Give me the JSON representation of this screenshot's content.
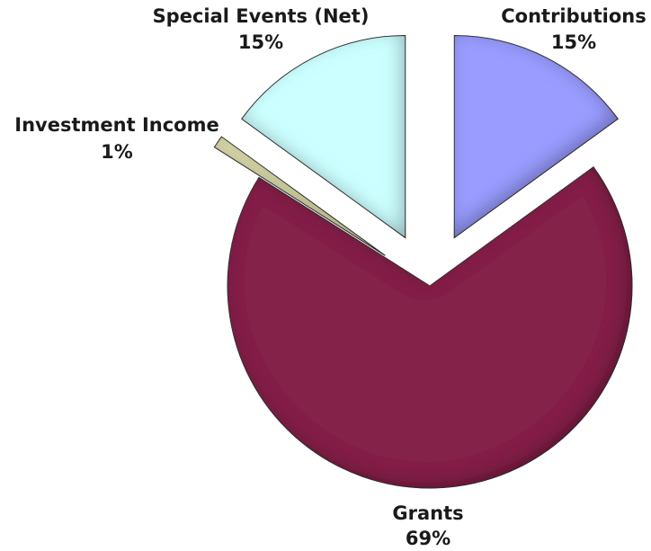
{
  "chart_data": {
    "type": "pie",
    "title": "",
    "start_angle_deg": 0,
    "direction": "clockwise",
    "slices": [
      {
        "label": "Contributions",
        "value": 15,
        "value_label": "15%",
        "color": "#9a9cff",
        "exploded": true
      },
      {
        "label": "Grants",
        "value": 69,
        "value_label": "69%",
        "color": "#84204a",
        "exploded": false
      },
      {
        "label": "Investment Income",
        "value": 1,
        "value_label": "1%",
        "color": "#eeeebb",
        "exploded": true
      },
      {
        "label": "Special Events (Net)",
        "value": 15,
        "value_label": "15%",
        "color": "#ccffff",
        "exploded": true
      }
    ],
    "legend": "none"
  }
}
